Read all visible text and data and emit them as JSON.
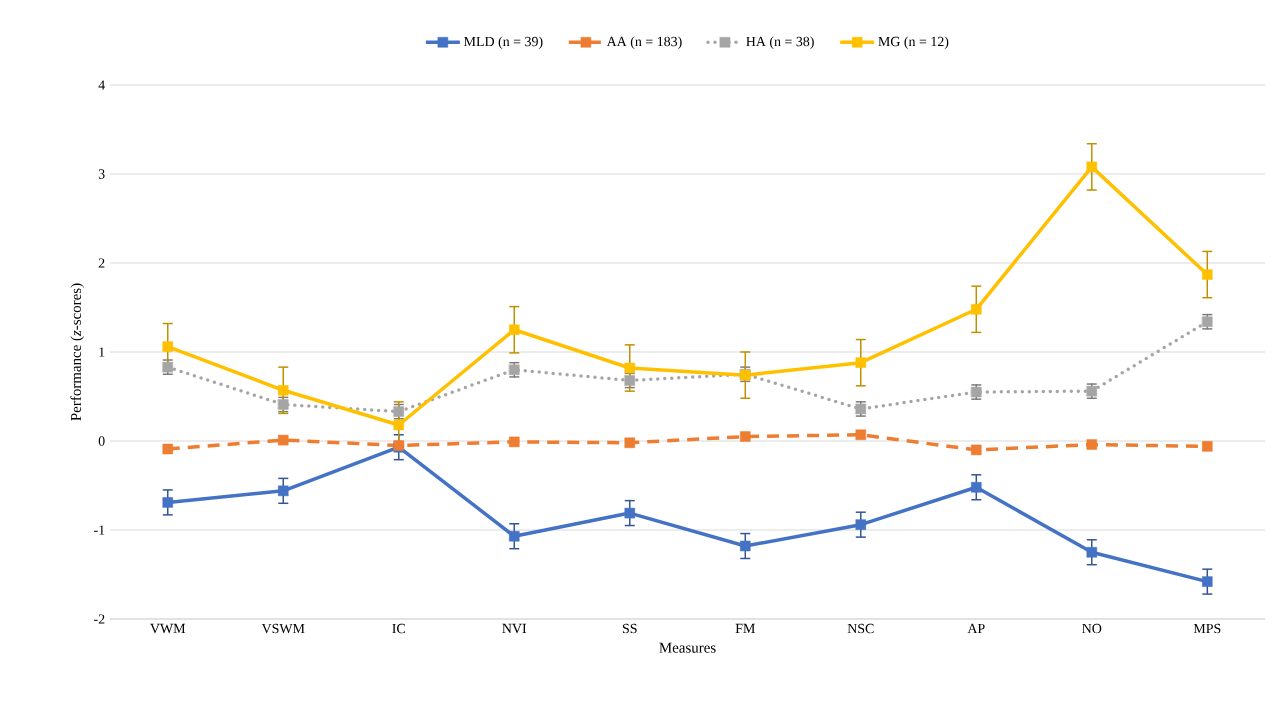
{
  "chart_data": {
    "type": "line",
    "xlabel": "Measures",
    "ylabel": "Performance (*z*-scores)",
    "categories": [
      "VWM",
      "VSWM",
      "IC",
      "NVI",
      "SS",
      "FM",
      "NSC",
      "AP",
      "NO",
      "MPS"
    ],
    "ylim": [
      -2,
      4
    ],
    "yticks": [
      -2,
      -1,
      0,
      1,
      2,
      3,
      4
    ],
    "grid": "y",
    "legend": "top",
    "marker": "square",
    "series": [
      {
        "name": "MLD (n = 39)",
        "color": "#4472c4",
        "line_style": "solid",
        "values": [
          -0.69,
          -0.56,
          -0.07,
          -1.07,
          -0.81,
          -1.18,
          -0.94,
          -0.52,
          -1.25,
          -1.58
        ],
        "errors": [
          0.14,
          0.14,
          0.14,
          0.14,
          0.14,
          0.14,
          0.14,
          0.14,
          0.14,
          0.14
        ]
      },
      {
        "name": "AA (n = 183)",
        "color": "#ed7d31",
        "line_style": "dashed",
        "values": [
          -0.09,
          0.01,
          -0.05,
          -0.01,
          -0.02,
          0.05,
          0.07,
          -0.1,
          -0.04,
          -0.06
        ]
      },
      {
        "name": "HA (n = 38)",
        "color": "#a5a5a5",
        "line_style": "dotted",
        "values": [
          0.83,
          0.41,
          0.33,
          0.8,
          0.68,
          0.75,
          0.36,
          0.55,
          0.56,
          1.34
        ],
        "errors": [
          0.08,
          0.08,
          0.08,
          0.08,
          0.08,
          0.08,
          0.08,
          0.08,
          0.08,
          0.08
        ]
      },
      {
        "name": "MG (n = 12)",
        "color": "#ffc000",
        "line_style": "solid",
        "values": [
          1.06,
          0.57,
          0.18,
          1.25,
          0.82,
          0.74,
          0.88,
          1.48,
          3.08,
          1.87
        ],
        "errors": [
          0.26,
          0.26,
          0.26,
          0.26,
          0.26,
          0.26,
          0.26,
          0.26,
          0.26,
          0.26
        ]
      }
    ]
  }
}
